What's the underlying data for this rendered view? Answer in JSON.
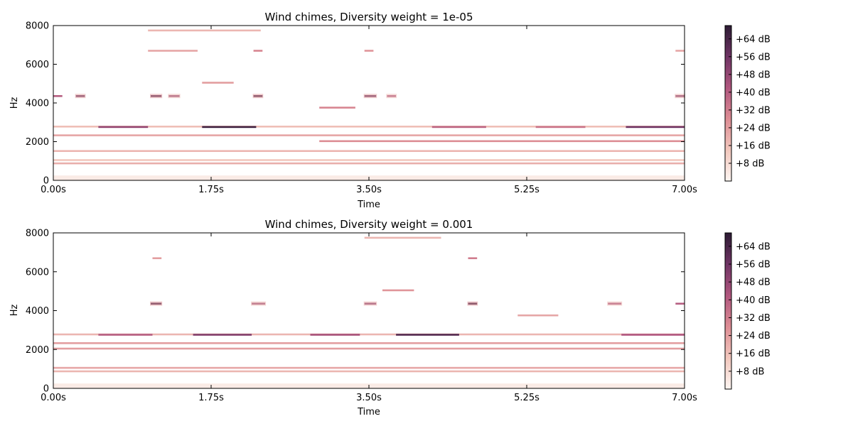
{
  "chart_data": [
    {
      "type": "heatmap",
      "title": "Wind chimes, Diversity weight = 1e-05",
      "xlabel": "Time",
      "ylabel": "Hz",
      "x_ticks": [
        "0.00s",
        "1.75s",
        "3.50s",
        "5.25s",
        "7.00s"
      ],
      "y_ticks": [
        "0",
        "2000",
        "4000",
        "6000",
        "8000"
      ],
      "xlim": [
        0,
        7
      ],
      "ylim": [
        0,
        8000
      ],
      "colorbar": {
        "labels": [
          "+8 dB",
          "+16 dB",
          "+24 dB",
          "+32 dB",
          "+40 dB",
          "+48 dB",
          "+56 dB",
          "+64 dB"
        ],
        "range_db": [
          0,
          70
        ],
        "colors": [
          "#fdf6f2",
          "#f2c7bd",
          "#dd8d94",
          "#b0567e",
          "#6f3464",
          "#2c1b33"
        ]
      },
      "tones": [
        {
          "t0": 0.0,
          "t1": 7.0,
          "f": 880,
          "db": 20
        },
        {
          "t0": 0.0,
          "t1": 7.0,
          "f": 1050,
          "db": 14
        },
        {
          "t0": 0.0,
          "t1": 7.0,
          "f": 1520,
          "db": 18
        },
        {
          "t0": 0.0,
          "t1": 7.0,
          "f": 2330,
          "db": 22
        },
        {
          "t0": 0.0,
          "t1": 7.0,
          "f": 2780,
          "db": 16
        },
        {
          "t0": 2.95,
          "t1": 7.0,
          "f": 2030,
          "db": 28
        },
        {
          "t0": 0.5,
          "t1": 1.05,
          "f": 2760,
          "db": 48
        },
        {
          "t0": 1.65,
          "t1": 2.25,
          "f": 2760,
          "db": 66
        },
        {
          "t0": 4.2,
          "t1": 4.8,
          "f": 2760,
          "db": 38
        },
        {
          "t0": 5.35,
          "t1": 5.9,
          "f": 2760,
          "db": 34
        },
        {
          "t0": 6.35,
          "t1": 7.0,
          "f": 2760,
          "db": 56
        },
        {
          "t0": 0.0,
          "t1": 0.1,
          "f": 4360,
          "db": 40
        },
        {
          "t0": 0.25,
          "t1": 0.35,
          "f": 4360,
          "db": 58
        },
        {
          "t0": 1.08,
          "t1": 1.2,
          "f": 4360,
          "db": 62
        },
        {
          "t0": 1.28,
          "t1": 1.4,
          "f": 4360,
          "db": 48
        },
        {
          "t0": 2.22,
          "t1": 2.32,
          "f": 4360,
          "db": 64
        },
        {
          "t0": 3.45,
          "t1": 3.58,
          "f": 4360,
          "db": 58
        },
        {
          "t0": 3.7,
          "t1": 3.8,
          "f": 4360,
          "db": 44
        },
        {
          "t0": 6.9,
          "t1": 7.0,
          "f": 4360,
          "db": 52
        },
        {
          "t0": 1.65,
          "t1": 2.0,
          "f": 5050,
          "db": 24
        },
        {
          "t0": 2.95,
          "t1": 3.35,
          "f": 3760,
          "db": 30
        },
        {
          "t0": 1.05,
          "t1": 1.6,
          "f": 6700,
          "db": 22
        },
        {
          "t0": 2.22,
          "t1": 2.32,
          "f": 6700,
          "db": 30
        },
        {
          "t0": 3.45,
          "t1": 3.55,
          "f": 6700,
          "db": 26
        },
        {
          "t0": 6.9,
          "t1": 7.0,
          "f": 6700,
          "db": 22
        },
        {
          "t0": 1.05,
          "t1": 2.3,
          "f": 7750,
          "db": 18
        }
      ]
    },
    {
      "type": "heatmap",
      "title": "Wind chimes, Diversity weight = 0.001",
      "xlabel": "Time",
      "ylabel": "Hz",
      "x_ticks": [
        "0.00s",
        "1.75s",
        "3.50s",
        "5.25s",
        "7.00s"
      ],
      "y_ticks": [
        "0",
        "2000",
        "4000",
        "6000",
        "8000"
      ],
      "xlim": [
        0,
        7
      ],
      "ylim": [
        0,
        8000
      ],
      "colorbar": {
        "labels": [
          "+8 dB",
          "+16 dB",
          "+24 dB",
          "+32 dB",
          "+40 dB",
          "+48 dB",
          "+56 dB",
          "+64 dB"
        ],
        "range_db": [
          0,
          70
        ],
        "colors": [
          "#fdf6f2",
          "#f2c7bd",
          "#dd8d94",
          "#b0567e",
          "#6f3464",
          "#2c1b33"
        ]
      },
      "tones": [
        {
          "t0": 0.0,
          "t1": 7.0,
          "f": 880,
          "db": 18
        },
        {
          "t0": 0.0,
          "t1": 7.0,
          "f": 1060,
          "db": 22
        },
        {
          "t0": 0.0,
          "t1": 7.0,
          "f": 2050,
          "db": 24
        },
        {
          "t0": 0.0,
          "t1": 7.0,
          "f": 2330,
          "db": 24
        },
        {
          "t0": 0.0,
          "t1": 7.0,
          "f": 2780,
          "db": 18
        },
        {
          "t0": 0.5,
          "t1": 1.1,
          "f": 2760,
          "db": 40
        },
        {
          "t0": 1.55,
          "t1": 2.2,
          "f": 2760,
          "db": 52
        },
        {
          "t0": 2.85,
          "t1": 3.4,
          "f": 2760,
          "db": 44
        },
        {
          "t0": 3.8,
          "t1": 4.5,
          "f": 2760,
          "db": 62
        },
        {
          "t0": 6.3,
          "t1": 7.0,
          "f": 2760,
          "db": 42
        },
        {
          "t0": 1.08,
          "t1": 1.2,
          "f": 4360,
          "db": 64
        },
        {
          "t0": 2.2,
          "t1": 2.35,
          "f": 4360,
          "db": 46
        },
        {
          "t0": 3.45,
          "t1": 3.58,
          "f": 4360,
          "db": 50
        },
        {
          "t0": 4.6,
          "t1": 4.7,
          "f": 4360,
          "db": 66
        },
        {
          "t0": 6.15,
          "t1": 6.3,
          "f": 4360,
          "db": 44
        },
        {
          "t0": 6.9,
          "t1": 7.0,
          "f": 4360,
          "db": 40
        },
        {
          "t0": 5.15,
          "t1": 5.6,
          "f": 3760,
          "db": 22
        },
        {
          "t0": 3.65,
          "t1": 4.0,
          "f": 5050,
          "db": 26
        },
        {
          "t0": 4.6,
          "t1": 4.7,
          "f": 6700,
          "db": 32
        },
        {
          "t0": 1.1,
          "t1": 1.2,
          "f": 6700,
          "db": 24
        },
        {
          "t0": 3.45,
          "t1": 4.3,
          "f": 7750,
          "db": 18
        }
      ]
    }
  ]
}
